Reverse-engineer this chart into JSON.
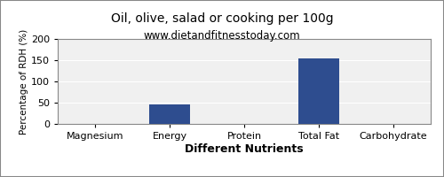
{
  "title": "Oil, olive, salad or cooking per 100g",
  "subtitle": "www.dietandfitnesstoday.com",
  "xlabel": "Different Nutrients",
  "ylabel": "Percentage of RDH (%)",
  "categories": [
    "Magnesium",
    "Energy",
    "Protein",
    "Total Fat",
    "Carbohydrate"
  ],
  "values": [
    0,
    45,
    0,
    155,
    0
  ],
  "bar_color": "#2e4d8f",
  "ylim": [
    0,
    200
  ],
  "yticks": [
    0,
    50,
    100,
    150,
    200
  ],
  "background_color": "#ffffff",
  "plot_bg_color": "#f0f0f0",
  "title_fontsize": 10,
  "subtitle_fontsize": 8.5,
  "xlabel_fontsize": 9,
  "ylabel_fontsize": 7.5,
  "tick_fontsize": 8,
  "bar_width": 0.55,
  "grid_color": "#ffffff",
  "border_color": "#888888"
}
